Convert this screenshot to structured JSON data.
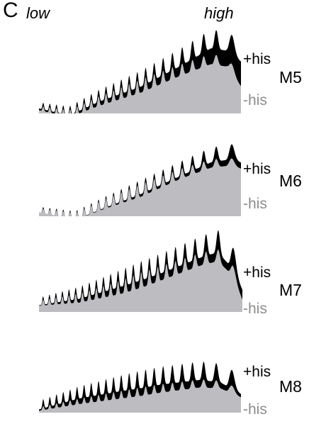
{
  "panel_label": "C",
  "axis_low_label": "low",
  "axis_high_label": "high",
  "chart_data": [
    {
      "type": "area",
      "name": "M5",
      "series": [
        {
          "name": "+his",
          "color": "#000000"
        },
        {
          "name": "-his",
          "color": "#bdbcc1"
        }
      ],
      "periods": 23,
      "minus_his_label": "-his",
      "plus_his_label": "+his",
      "minus_envelope": [
        [
          0,
          0.06
        ],
        [
          0.15,
          0.0
        ],
        [
          0.3,
          0.14
        ],
        [
          0.5,
          0.3
        ],
        [
          0.7,
          0.48
        ],
        [
          0.85,
          0.6
        ],
        [
          0.93,
          0.57
        ],
        [
          1.0,
          0.35
        ]
      ],
      "plus_envelope": [
        [
          0,
          0.09
        ],
        [
          0.15,
          0.03
        ],
        [
          0.3,
          0.2
        ],
        [
          0.5,
          0.38
        ],
        [
          0.7,
          0.62
        ],
        [
          0.85,
          0.82
        ],
        [
          0.93,
          0.8
        ],
        [
          1.0,
          0.68
        ]
      ],
      "minus_amplitude": [
        [
          0,
          0.05
        ],
        [
          0.5,
          0.15
        ],
        [
          1.0,
          0.1
        ]
      ],
      "plus_amplitude": [
        [
          0,
          0.07
        ],
        [
          0.5,
          0.18
        ],
        [
          1.0,
          0.22
        ]
      ]
    },
    {
      "type": "area",
      "name": "M6",
      "series": [
        {
          "name": "+his",
          "color": "#000000"
        },
        {
          "name": "-his",
          "color": "#bdbcc1"
        }
      ],
      "periods": 23,
      "minus_his_label": "-his",
      "plus_his_label": "+his",
      "minus_envelope": [
        [
          0,
          0.07
        ],
        [
          0.18,
          0.0
        ],
        [
          0.32,
          0.14
        ],
        [
          0.5,
          0.3
        ],
        [
          0.7,
          0.5
        ],
        [
          0.85,
          0.62
        ],
        [
          0.95,
          0.64
        ],
        [
          1.0,
          0.6
        ]
      ],
      "plus_envelope": [
        [
          0,
          0.08
        ],
        [
          0.18,
          0.01
        ],
        [
          0.32,
          0.16
        ],
        [
          0.5,
          0.34
        ],
        [
          0.7,
          0.56
        ],
        [
          0.85,
          0.72
        ],
        [
          0.95,
          0.76
        ],
        [
          1.0,
          0.72
        ]
      ],
      "minus_amplitude": [
        [
          0,
          0.05
        ],
        [
          0.5,
          0.15
        ],
        [
          1.0,
          0.08
        ]
      ],
      "plus_amplitude": [
        [
          0,
          0.07
        ],
        [
          0.5,
          0.17
        ],
        [
          1.0,
          0.18
        ]
      ]
    },
    {
      "type": "area",
      "name": "M7",
      "series": [
        {
          "name": "+his",
          "color": "#000000"
        },
        {
          "name": "-his",
          "color": "#bdbcc1"
        }
      ],
      "periods": 24,
      "minus_his_label": "-his",
      "plus_his_label": "+his",
      "minus_envelope": [
        [
          0,
          0.1
        ],
        [
          0.2,
          0.16
        ],
        [
          0.4,
          0.28
        ],
        [
          0.6,
          0.44
        ],
        [
          0.8,
          0.6
        ],
        [
          0.88,
          0.64
        ],
        [
          0.95,
          0.48
        ],
        [
          1.0,
          0.2
        ]
      ],
      "plus_envelope": [
        [
          0,
          0.12
        ],
        [
          0.2,
          0.22
        ],
        [
          0.4,
          0.38
        ],
        [
          0.6,
          0.55
        ],
        [
          0.8,
          0.74
        ],
        [
          0.88,
          0.8
        ],
        [
          0.95,
          0.62
        ],
        [
          1.0,
          0.38
        ]
      ],
      "minus_amplitude": [
        [
          0,
          0.06
        ],
        [
          0.5,
          0.18
        ],
        [
          1.0,
          0.12
        ]
      ],
      "plus_amplitude": [
        [
          0,
          0.09
        ],
        [
          0.5,
          0.22
        ],
        [
          1.0,
          0.26
        ]
      ]
    },
    {
      "type": "area",
      "name": "M8",
      "series": [
        {
          "name": "+his",
          "color": "#000000"
        },
        {
          "name": "-his",
          "color": "#bdbcc1"
        }
      ],
      "periods": 23,
      "minus_his_label": "-his",
      "plus_his_label": "+his",
      "minus_envelope": [
        [
          0,
          0.06
        ],
        [
          0.2,
          0.18
        ],
        [
          0.4,
          0.28
        ],
        [
          0.6,
          0.38
        ],
        [
          0.8,
          0.46
        ],
        [
          0.9,
          0.44
        ],
        [
          1.0,
          0.3
        ]
      ],
      "plus_envelope": [
        [
          0,
          0.12
        ],
        [
          0.2,
          0.32
        ],
        [
          0.4,
          0.46
        ],
        [
          0.6,
          0.58
        ],
        [
          0.8,
          0.66
        ],
        [
          0.9,
          0.62
        ],
        [
          1.0,
          0.44
        ]
      ],
      "minus_amplitude": [
        [
          0,
          0.06
        ],
        [
          0.5,
          0.14
        ],
        [
          1.0,
          0.12
        ]
      ],
      "plus_amplitude": [
        [
          0,
          0.14
        ],
        [
          0.5,
          0.28
        ],
        [
          1.0,
          0.3
        ]
      ]
    }
  ]
}
